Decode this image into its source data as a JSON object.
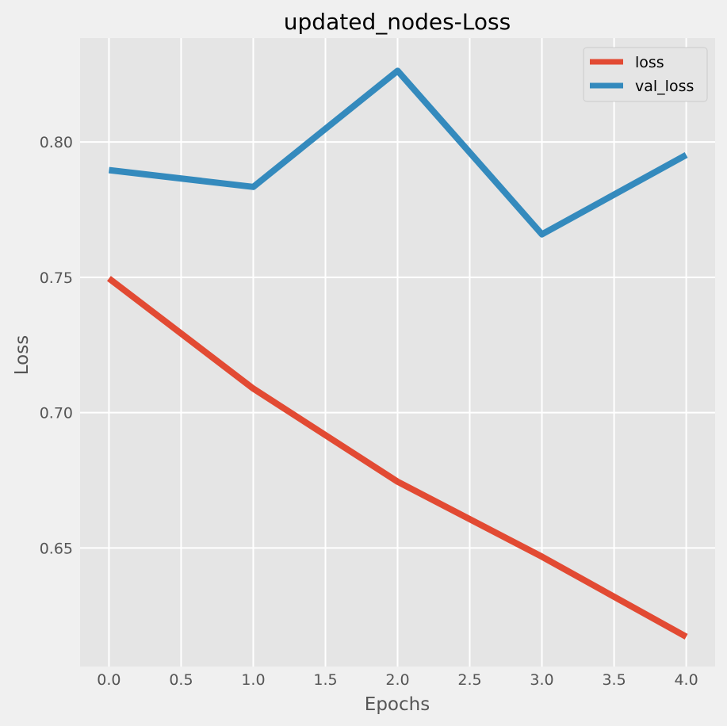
{
  "chart_data": {
    "type": "line",
    "title": "updated_nodes-Loss",
    "xlabel": "Epochs",
    "ylabel": "Loss",
    "x": [
      0,
      1,
      2,
      3,
      4
    ],
    "xlim": [
      -0.2,
      4.2
    ],
    "ylim": [
      0.6062,
      0.8384
    ],
    "xticks": [
      "0.0",
      "0.5",
      "1.0",
      "1.5",
      "2.0",
      "2.5",
      "3.0",
      "3.5",
      "4.0"
    ],
    "yticks": [
      "0.65",
      "0.70",
      "0.75",
      "0.80"
    ],
    "grid": true,
    "legend_position": "top-right",
    "series": [
      {
        "name": "loss",
        "color": "#e24a33",
        "values": [
          0.7496,
          0.7089,
          0.6745,
          0.6468,
          0.6172
        ]
      },
      {
        "name": "val_loss",
        "color": "#348abd",
        "values": [
          0.7896,
          0.7834,
          0.8263,
          0.7659,
          0.7952
        ]
      }
    ]
  }
}
